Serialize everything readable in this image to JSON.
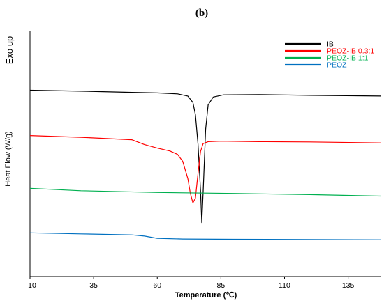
{
  "panel_label": "(b)",
  "exo_label": "Exo up",
  "chart_data": {
    "type": "line",
    "xlabel": "Temperature (℃)",
    "ylabel": "Heat Flow (W/g)",
    "xlim": [
      10,
      148
    ],
    "xticks": [
      10,
      35,
      60,
      85,
      110,
      135
    ],
    "ylim": [
      0,
      100
    ],
    "y_ticks_shown": false,
    "y_units": "relative offset (arbitrary)",
    "grid": false,
    "legend_position": "top-right",
    "series": [
      {
        "name": "IB",
        "color": "#000000",
        "x": [
          10,
          30,
          50,
          60,
          68,
          72,
          74,
          75,
          76,
          77,
          77.5,
          78,
          79,
          80,
          82,
          86,
          100,
          120,
          148
        ],
        "y": [
          76,
          75.6,
          75.1,
          74.9,
          74.5,
          73.6,
          71,
          66,
          54,
          35,
          22,
          34,
          60,
          70,
          73.2,
          74.1,
          74.2,
          73.9,
          73.6
        ]
      },
      {
        "name": "PEOZ-IB 0.3:1",
        "color": "#ff0000",
        "x": [
          10,
          30,
          50,
          55,
          60,
          65,
          68,
          70,
          72,
          73,
          74,
          75,
          76,
          77,
          78,
          80,
          85,
          100,
          120,
          148
        ],
        "y": [
          57.5,
          56.8,
          55.8,
          53.8,
          52.4,
          51.2,
          49.8,
          47,
          40,
          34,
          30,
          32,
          42,
          51,
          54.2,
          55,
          55.2,
          55,
          54.9,
          54.5
        ]
      },
      {
        "name": "PEOZ-IB 1:1",
        "color": "#00b050",
        "x": [
          10,
          30,
          60,
          90,
          120,
          148
        ],
        "y": [
          36,
          35,
          34.3,
          33.9,
          33.4,
          32.8
        ]
      },
      {
        "name": "PEOZ",
        "color": "#0070c0",
        "x": [
          10,
          30,
          50,
          55,
          60,
          70,
          90,
          120,
          148
        ],
        "y": [
          17.8,
          17.4,
          17,
          16.5,
          15.6,
          15.3,
          15.2,
          15.1,
          15
        ]
      }
    ]
  }
}
